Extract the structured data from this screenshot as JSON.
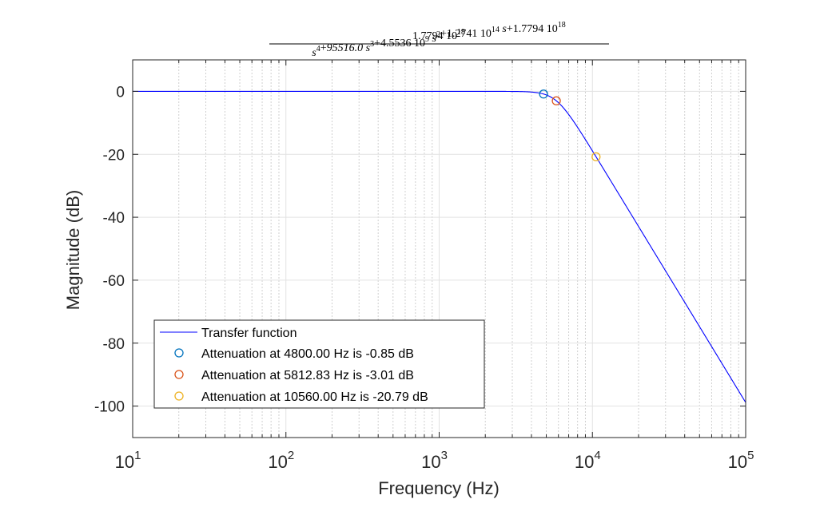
{
  "chart_data": {
    "type": "line",
    "title": {
      "numerator": {
        "coef": "1.7794",
        "base": "10",
        "exp": "18"
      },
      "denominator": [
        {
          "kind": "term",
          "coef": "",
          "base": "s",
          "exp": "4"
        },
        {
          "kind": "op",
          "text": "+"
        },
        {
          "kind": "term",
          "coef": "95516.0",
          "base": "s",
          "exp": "3"
        },
        {
          "kind": "op",
          "text": "+"
        },
        {
          "kind": "sci",
          "coef": "4.5536",
          "base": "10",
          "exp": "9"
        },
        {
          "kind": "term",
          "coef": "",
          "base": "s",
          "exp": "2"
        },
        {
          "kind": "op",
          "text": "+"
        },
        {
          "kind": "sci",
          "coef": "1.2741",
          "base": "10",
          "exp": "14"
        },
        {
          "kind": "term",
          "coef": "",
          "base": "s",
          "exp": ""
        },
        {
          "kind": "op",
          "text": "+"
        },
        {
          "kind": "sci",
          "coef": "1.7794",
          "base": "10",
          "exp": "18"
        }
      ]
    },
    "xlabel": "Frequency (Hz)",
    "ylabel": "Magnitude (dB)",
    "xscale": "log",
    "xlim": [
      10,
      100000
    ],
    "ylim": [
      -110,
      10
    ],
    "xticks": [
      {
        "base": "10",
        "exp": "1",
        "value": 10
      },
      {
        "base": "10",
        "exp": "2",
        "value": 100
      },
      {
        "base": "10",
        "exp": "3",
        "value": 1000
      },
      {
        "base": "10",
        "exp": "4",
        "value": 10000
      },
      {
        "base": "10",
        "exp": "5",
        "value": 100000
      }
    ],
    "yticks": [
      {
        "label": "0",
        "value": 0
      },
      {
        "label": "-20",
        "value": -20
      },
      {
        "label": "-40",
        "value": -40
      },
      {
        "label": "-60",
        "value": -60
      },
      {
        "label": "-80",
        "value": -80
      },
      {
        "label": "-100",
        "value": -100
      }
    ],
    "grid": true,
    "minor_grid": true,
    "legend_position": "bottom-left",
    "series": [
      {
        "name": "Transfer function",
        "color": "#0000ff",
        "coefficients": {
          "a3": 95516.0,
          "a2": 4553600000,
          "a1": 127410000000000,
          "a0": 1779400000000000000,
          "b0": 1779400000000000000
        }
      }
    ],
    "markers": [
      {
        "name": "Attenuation at 4800.00 Hz is -0.85 dB",
        "x": 4800,
        "y": -0.85,
        "color": "#0072bd"
      },
      {
        "name": "Attenuation at 5812.83 Hz is -3.01 dB",
        "x": 5812.83,
        "y": -3.01,
        "color": "#d95319"
      },
      {
        "name": "Attenuation at 10560.00 Hz is -20.79 dB",
        "x": 10560,
        "y": -20.79,
        "color": "#edb120"
      }
    ]
  }
}
